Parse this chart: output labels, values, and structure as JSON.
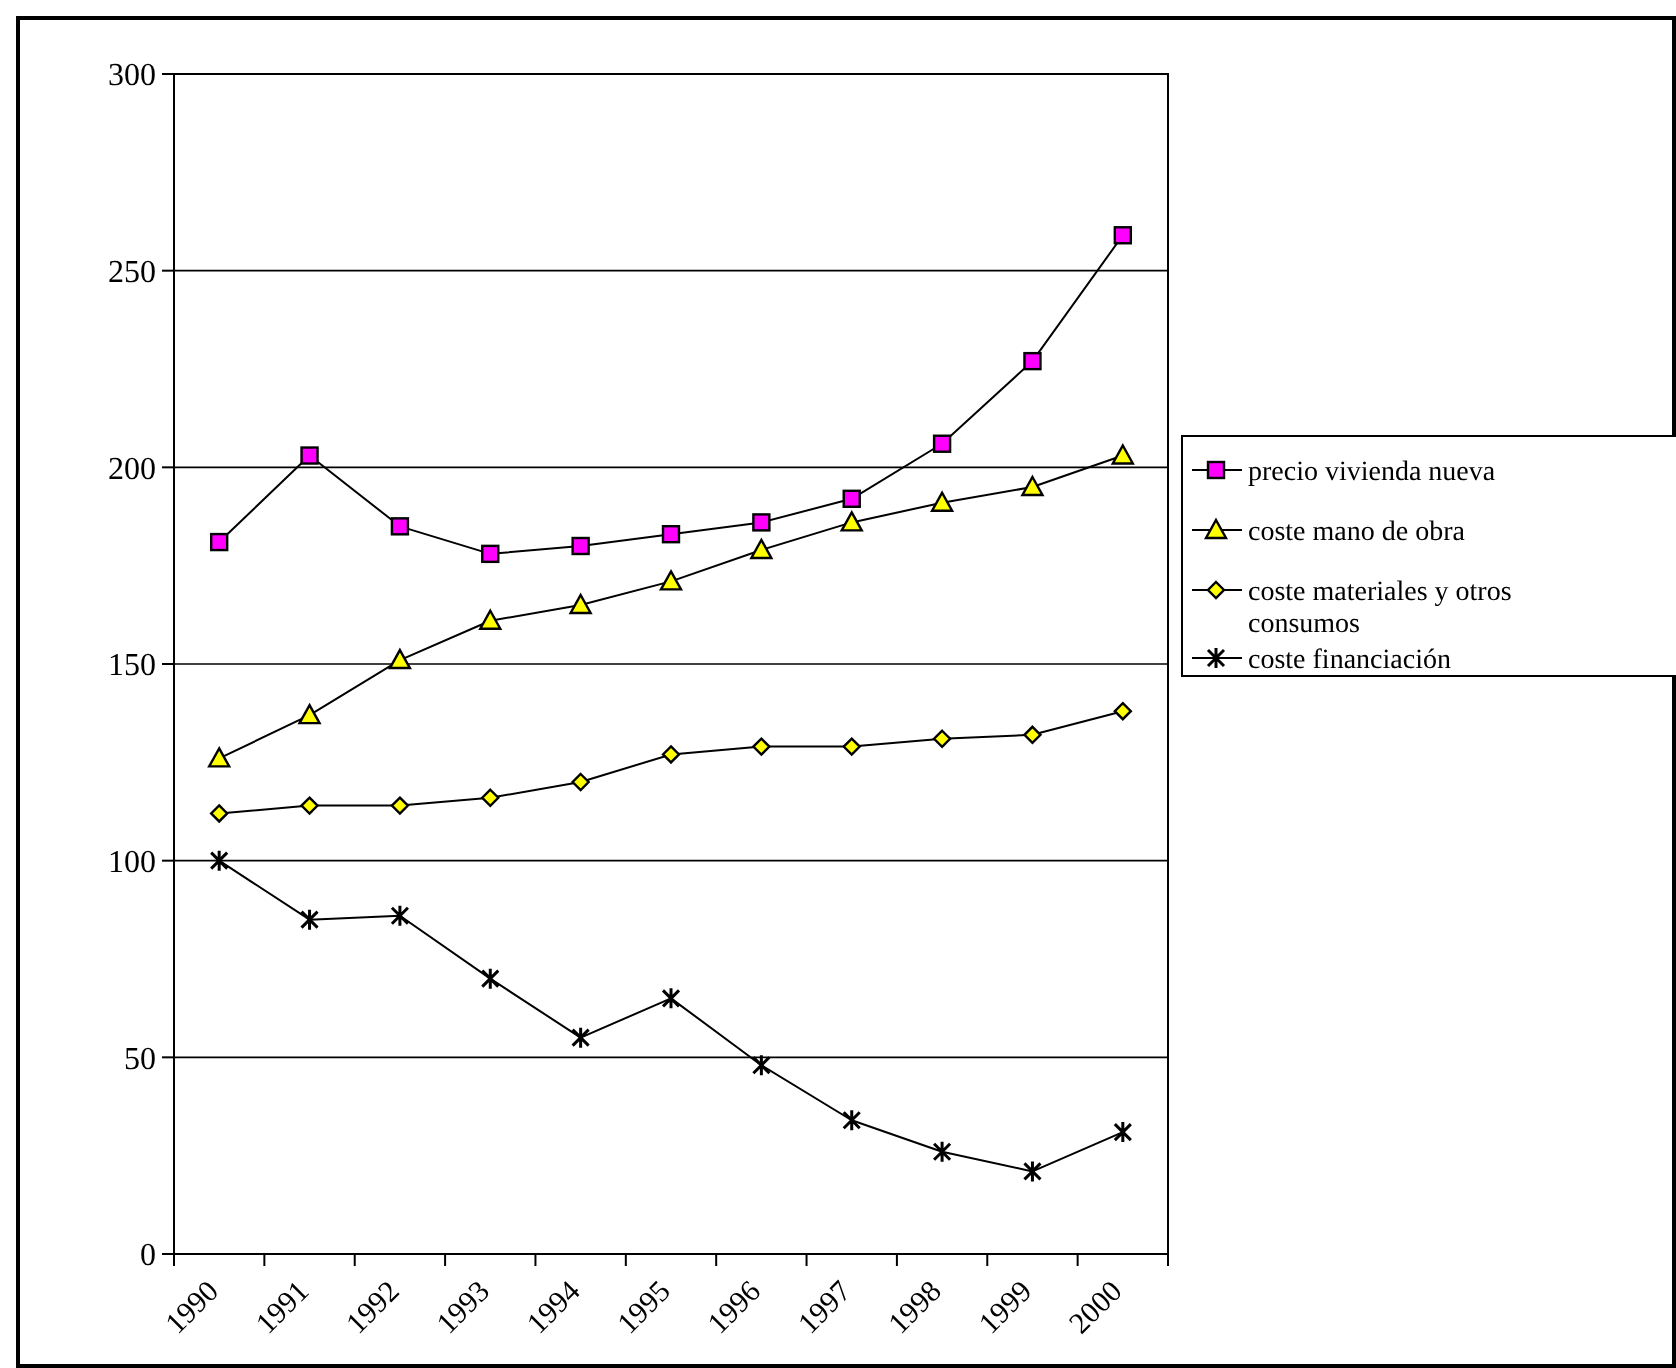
{
  "chart_data": {
    "type": "line",
    "categories": [
      "1990",
      "1991",
      "1992",
      "1993",
      "1994",
      "1995",
      "1996",
      "1997",
      "1998",
      "1999",
      "2000"
    ],
    "ylim": [
      0,
      300
    ],
    "yticks": [
      0,
      50,
      100,
      150,
      200,
      250,
      300
    ],
    "grid": "y",
    "legend": "right",
    "series": [
      {
        "name": "precio vivienda nueva",
        "color": "#ff00ff",
        "marker": "square",
        "values": [
          181,
          203,
          185,
          178,
          180,
          183,
          186,
          192,
          206,
          227,
          259
        ]
      },
      {
        "name": "coste mano de obra",
        "color": "#ffff00",
        "marker": "triangle",
        "values": [
          126,
          137,
          151,
          161,
          165,
          171,
          179,
          186,
          191,
          195,
          203
        ]
      },
      {
        "name": "coste materiales y otros consumos",
        "color": "#ffff00",
        "marker": "diamond",
        "values": [
          112,
          114,
          114,
          116,
          120,
          127,
          129,
          129,
          131,
          132,
          138
        ]
      },
      {
        "name": "coste financiación",
        "color": "#000000",
        "marker": "cross",
        "values": [
          100,
          85,
          86,
          70,
          55,
          65,
          48,
          34,
          26,
          21,
          31
        ]
      }
    ]
  }
}
